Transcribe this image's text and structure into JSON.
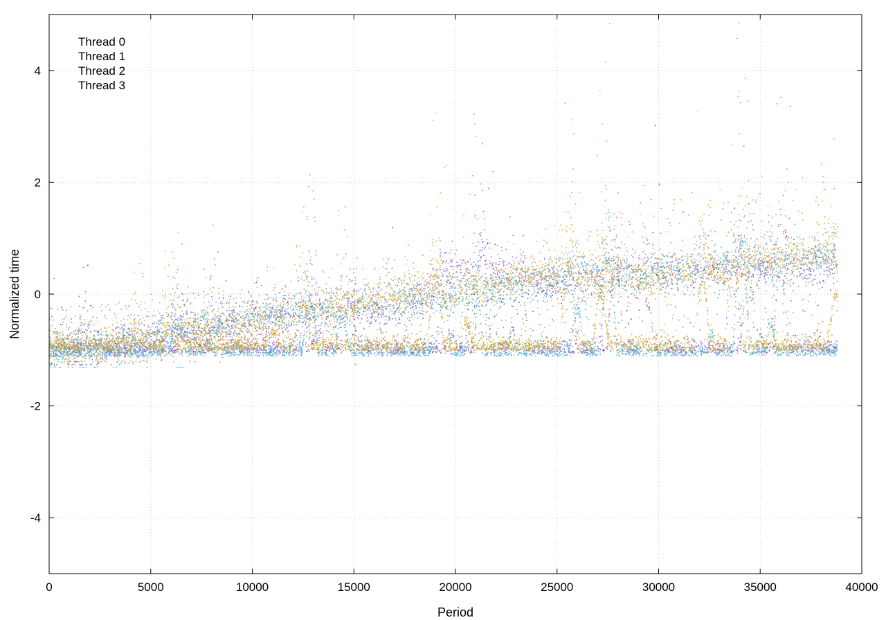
{
  "chart_data": {
    "type": "scatter",
    "title": "",
    "xlabel": "Period",
    "ylabel": "Normalized time",
    "xlim": [
      0,
      40000
    ],
    "ylim": [
      -5,
      5
    ],
    "x_ticks": [
      0,
      5000,
      10000,
      15000,
      20000,
      25000,
      30000,
      35000,
      40000
    ],
    "y_ticks": [
      -4,
      -2,
      0,
      2,
      4
    ],
    "grid": true,
    "grid_style": "dotted",
    "legend_position": "top-left",
    "point_count_per_series": 38800,
    "x_range": [
      0,
      38800
    ],
    "series": [
      {
        "name": "Thread 0",
        "color": "#0f5a4a",
        "baseline": -1.05,
        "trend_mean": [
          [
            0,
            -1.1
          ],
          [
            5000,
            -0.8
          ],
          [
            10000,
            -0.5
          ],
          [
            17500,
            -0.2
          ],
          [
            25000,
            0.1
          ],
          [
            30000,
            0.3
          ],
          [
            38800,
            0.5
          ]
        ],
        "spread_upper": [
          [
            0,
            0.2
          ],
          [
            10000,
            1.0
          ],
          [
            20000,
            1.6
          ],
          [
            38800,
            2.2
          ]
        ],
        "sparsity": "sparse"
      },
      {
        "name": "Thread 1",
        "color": "#9b59d0",
        "baseline": -1.05,
        "trend_mean": [
          [
            0,
            -1.1
          ],
          [
            5000,
            -0.8
          ],
          [
            10000,
            -0.5
          ],
          [
            17500,
            -0.2
          ],
          [
            20000,
            0.5
          ],
          [
            25000,
            0.2
          ],
          [
            30000,
            0.4
          ],
          [
            38800,
            0.5
          ]
        ],
        "spread_upper": [
          [
            0,
            0.2
          ],
          [
            10000,
            1.0
          ],
          [
            20000,
            2.2
          ],
          [
            29000,
            3.5
          ],
          [
            38800,
            3.0
          ]
        ],
        "sparsity": "medium"
      },
      {
        "name": "Thread 2",
        "color": "#4aa8d8",
        "baseline": -1.1,
        "trend_mean": [
          [
            0,
            -1.1
          ],
          [
            5000,
            -0.8
          ],
          [
            10000,
            -0.4
          ],
          [
            17500,
            -0.1
          ],
          [
            25000,
            0.3
          ],
          [
            30000,
            0.4
          ],
          [
            38800,
            0.7
          ]
        ],
        "spread_upper": [
          [
            0,
            0.2
          ],
          [
            10000,
            1.2
          ],
          [
            20000,
            2.0
          ],
          [
            38800,
            4.5
          ]
        ],
        "sparsity": "dense"
      },
      {
        "name": "Thread 3",
        "color": "#d4a020",
        "baseline": -1.0,
        "trend_mean": [
          [
            0,
            -1.0
          ],
          [
            5000,
            -0.8
          ],
          [
            10000,
            -0.5
          ],
          [
            17500,
            0.0
          ],
          [
            25000,
            0.4
          ],
          [
            30000,
            0.3
          ],
          [
            38800,
            0.8
          ]
        ],
        "spread_upper": [
          [
            0,
            0.2
          ],
          [
            10000,
            1.0
          ],
          [
            20000,
            2.0
          ],
          [
            38800,
            4.8
          ]
        ],
        "sparsity": "dense"
      }
    ]
  }
}
